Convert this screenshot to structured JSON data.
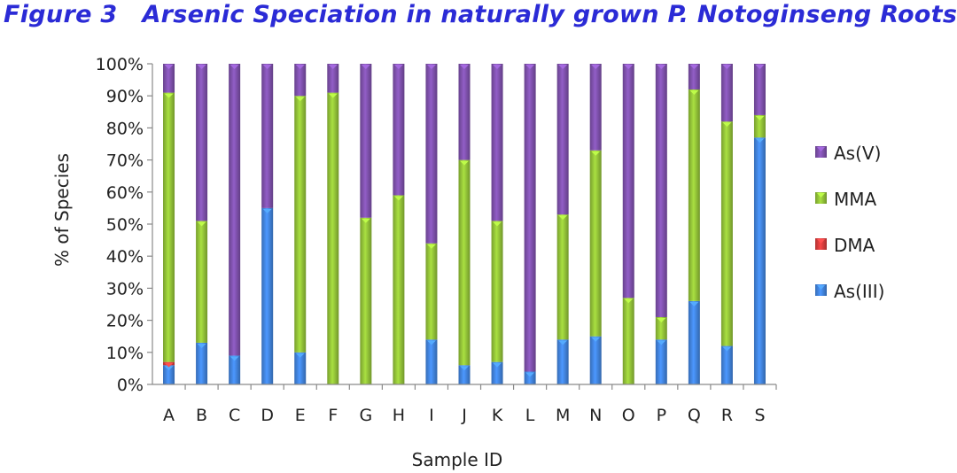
{
  "figure": {
    "label": "Figure 3",
    "title": "Arsenic Speciation in naturally grown P. Notoginseng Roots"
  },
  "chart_data": {
    "type": "bar",
    "stacked": true,
    "percent": true,
    "categories": [
      "A",
      "B",
      "C",
      "D",
      "E",
      "F",
      "G",
      "H",
      "I",
      "J",
      "K",
      "L",
      "M",
      "N",
      "O",
      "P",
      "Q",
      "R",
      "S"
    ],
    "series": [
      {
        "name": "As(III)",
        "color": "#3f7fd6",
        "values": [
          6,
          13,
          9,
          55,
          10,
          0,
          0,
          0,
          14,
          6,
          7,
          4,
          14,
          15,
          0,
          14,
          26,
          12,
          77
        ]
      },
      {
        "name": "DMA",
        "color": "#d03b3b",
        "values": [
          1,
          0,
          0,
          0,
          0,
          0,
          0,
          0,
          0,
          0,
          0,
          0,
          0,
          0,
          0,
          0,
          0,
          0,
          0
        ]
      },
      {
        "name": "MMA",
        "color": "#8dbb36",
        "values": [
          84,
          38,
          0,
          0,
          80,
          91,
          52,
          59,
          30,
          64,
          44,
          0,
          39,
          58,
          27,
          7,
          66,
          70,
          7
        ]
      },
      {
        "name": "As(V)",
        "color": "#7a4ea6",
        "values": [
          9,
          49,
          91,
          45,
          10,
          9,
          48,
          41,
          56,
          30,
          49,
          96,
          47,
          27,
          73,
          79,
          8,
          18,
          16
        ]
      }
    ],
    "xlabel": "Sample ID",
    "ylabel": "% of Species",
    "ylim": [
      0,
      100
    ],
    "yticks": [
      "0%",
      "10%",
      "20%",
      "30%",
      "40%",
      "50%",
      "60%",
      "70%",
      "80%",
      "90%",
      "100%"
    ],
    "grid": false,
    "legend_position": "right",
    "legend_order": [
      "As(V)",
      "MMA",
      "DMA",
      "As(III)"
    ]
  }
}
